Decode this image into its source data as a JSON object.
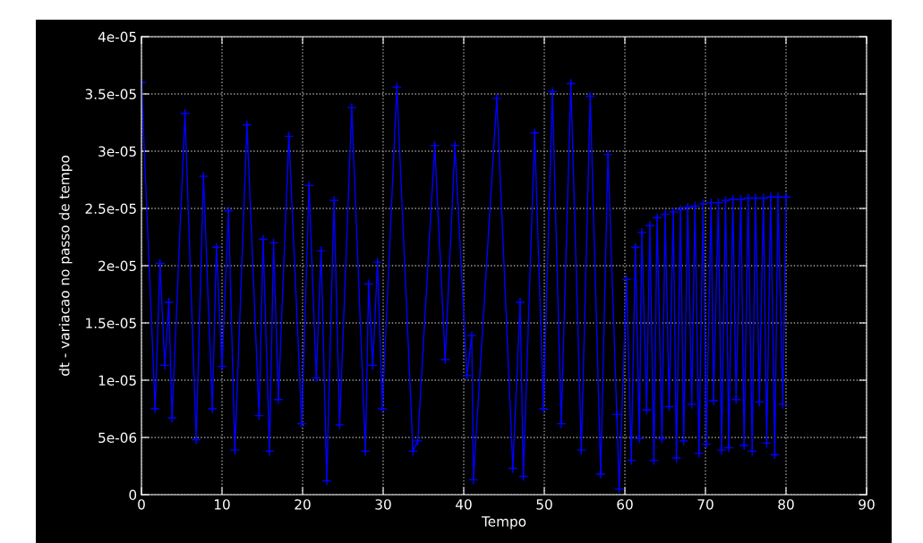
{
  "chart_data": {
    "type": "line",
    "xlabel": "Tempo",
    "ylabel": "dt - variacao no passo de tempo",
    "xlim": [
      0,
      90
    ],
    "xticks": [
      0,
      10,
      20,
      30,
      40,
      50,
      60,
      70,
      80,
      90
    ],
    "ylim": [
      0,
      4e-05
    ],
    "yticks": [
      {
        "value": 0,
        "label": "0"
      },
      {
        "value": 5e-06,
        "label": "5e-06"
      },
      {
        "value": 1e-05,
        "label": "1e-05"
      },
      {
        "value": 1.5e-05,
        "label": "1.5e-05"
      },
      {
        "value": 2e-05,
        "label": "2e-05"
      },
      {
        "value": 2.5e-05,
        "label": "2.5e-05"
      },
      {
        "value": 3e-05,
        "label": "3e-05"
      },
      {
        "value": 3.5e-05,
        "label": "3.5e-05"
      },
      {
        "value": 4e-05,
        "label": "4e-05"
      }
    ],
    "grid": true,
    "marker": "cross",
    "line_style": "solid",
    "series": [
      {
        "color": "#0000ff",
        "x": [
          0,
          1.7,
          2.3,
          2.9,
          3.4,
          3.8,
          5.4,
          6.8,
          7.7,
          8.8,
          9.3,
          10.0,
          10.8,
          11.6,
          13.1,
          14.6,
          15.1,
          15.9,
          16.4,
          17.0,
          18.3,
          19.9,
          20.8,
          21.7,
          22.3,
          23.0,
          23.9,
          24.6,
          26.1,
          27.8,
          28.2,
          28.7,
          29.3,
          29.9,
          31.7,
          33.7,
          34.3,
          36.4,
          37.7,
          38.9,
          40.4,
          41.0,
          41.2,
          44.1,
          46.1,
          47.0,
          47.4,
          48.8,
          49.9,
          51.0,
          52.1,
          53.3,
          54.6,
          55.7,
          57.0,
          57.9,
          59.0,
          59.3,
          60.2,
          60.8,
          61.3,
          61.8,
          62.1,
          62.7,
          63.1,
          63.6,
          64.0,
          64.6,
          65.0,
          65.5,
          66.0,
          66.4,
          66.9,
          67.3,
          67.8,
          68.3,
          68.7,
          69.2,
          69.7,
          70.1,
          70.7,
          71.0,
          71.6,
          72.0,
          72.5,
          72.9,
          73.4,
          73.8,
          74.4,
          74.8,
          75.3,
          75.8,
          76.2,
          76.7,
          77.2,
          77.6,
          78.1,
          78.6,
          79.0,
          79.6,
          80.0
        ],
        "values": [
          3.6e-05,
          7.5e-06,
          2.02e-05,
          1.13e-05,
          1.68e-05,
          6.7e-06,
          3.33e-05,
          4.8e-06,
          2.78e-05,
          7.5e-06,
          2.16e-05,
          1.12e-05,
          2.48e-05,
          3.9e-06,
          3.23e-05,
          6.9e-06,
          2.23e-05,
          3.8e-06,
          2.2e-05,
          8.3e-06,
          3.13e-05,
          6.2e-06,
          2.7e-05,
          1.02e-05,
          2.13e-05,
          1.2e-06,
          2.57e-05,
          6.1e-06,
          3.38e-05,
          3.8e-06,
          1.84e-05,
          1.13e-05,
          2.03e-05,
          7.5e-06,
          3.56e-05,
          3.8e-06,
          4.7e-06,
          3.05e-05,
          1.18e-05,
          3.05e-05,
          1.04e-05,
          1.39e-05,
          1.3e-06,
          3.46e-05,
          2.3e-06,
          1.68e-05,
          1.6e-06,
          3.16e-05,
          7.5e-06,
          3.52e-05,
          6.2e-06,
          3.59e-05,
          3.9e-06,
          3.48e-05,
          1.8e-06,
          2.97e-05,
          7e-06,
          5e-07,
          1.88e-05,
          3e-06,
          2.16e-05,
          4.9e-06,
          2.29e-05,
          7.4e-06,
          2.35e-05,
          3e-06,
          2.42e-05,
          4.9e-06,
          2.45e-05,
          7.7e-06,
          2.47e-05,
          3.2e-06,
          2.49e-05,
          4.7e-06,
          2.51e-05,
          7.9e-06,
          2.52e-05,
          3.6e-06,
          2.54e-05,
          4.4e-06,
          2.55e-05,
          8.2e-06,
          2.55e-05,
          3.9e-06,
          2.57e-05,
          4.1e-06,
          2.58e-05,
          8.3e-06,
          2.58e-05,
          4.3e-06,
          2.59e-05,
          3.8e-06,
          2.59e-05,
          8.1e-06,
          2.59e-05,
          4.5e-06,
          2.6e-05,
          3.5e-06,
          2.6e-05,
          7.9e-06,
          2.6e-05
        ]
      }
    ]
  }
}
